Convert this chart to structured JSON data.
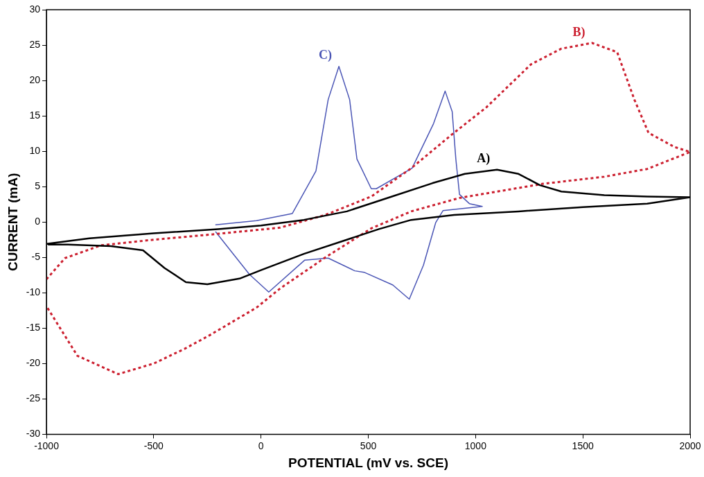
{
  "chart_data": {
    "type": "line",
    "xlabel": "POTENTIAL (mV vs. SCE)",
    "ylabel": "CURRENT (mA)",
    "xlim": [
      -1000,
      2000
    ],
    "xticks": [
      -1000,
      -500,
      0,
      500,
      1000,
      1500,
      2000
    ],
    "ylim": [
      -30,
      30
    ],
    "yticks": [
      -30,
      -25,
      -20,
      -15,
      -10,
      -5,
      0,
      5,
      10,
      15,
      20,
      25,
      30
    ],
    "grid": false,
    "legend": false,
    "marker": "none",
    "series": [
      {
        "name": "A)",
        "color": "#000000",
        "line_style": "solid",
        "x": [
          -1000,
          -800,
          -500,
          -200,
          0,
          200,
          400,
          600,
          800,
          950,
          1100,
          1200,
          1300,
          1400,
          1600,
          1800,
          2000,
          1800,
          1500,
          1200,
          900,
          700,
          550,
          400,
          200,
          0,
          -100,
          -250,
          -350,
          -450,
          -550,
          -700,
          -900,
          -990
        ],
        "values": [
          -3.1,
          -2.3,
          -1.6,
          -1.0,
          -0.5,
          0.3,
          1.5,
          3.5,
          5.5,
          6.8,
          7.4,
          6.8,
          5.2,
          4.3,
          3.8,
          3.6,
          3.5,
          2.6,
          2.1,
          1.5,
          1.0,
          0.3,
          -1.0,
          -2.5,
          -4.5,
          -6.8,
          -8.0,
          -8.8,
          -8.5,
          -6.5,
          -4.0,
          -3.4,
          -3.2,
          -3.2
        ]
      },
      {
        "name": "B)",
        "color": "#cc1f2f",
        "line_style": "dotted",
        "x": [
          -1000,
          -913,
          -746,
          -500,
          -245,
          89,
          300,
          514,
          700,
          891,
          1050,
          1259,
          1400,
          1543,
          1660,
          1740,
          1806,
          1927,
          2000,
          1800,
          1600,
          1315,
          1100,
          925,
          700,
          514,
          300,
          89,
          -21,
          -245,
          -355,
          -500,
          -666,
          -856,
          -1000
        ],
        "values": [
          -8.1,
          -5.1,
          -3.3,
          -2.5,
          -1.8,
          -0.8,
          1.0,
          3.6,
          7.6,
          12.4,
          16.2,
          22.3,
          24.5,
          25.3,
          24,
          17.3,
          12.6,
          10.6,
          9.9,
          7.5,
          6.4,
          5.4,
          4.3,
          3.4,
          1.5,
          -0.9,
          -5.0,
          -9.4,
          -12.1,
          -16.1,
          -17.9,
          -20.0,
          -21.5,
          -18.9,
          -11.9
        ]
      },
      {
        "name": "C)",
        "color": "#4a55b5",
        "line_style": "solid",
        "x": [
          -211,
          -21,
          146,
          256,
          313,
          363,
          413,
          447,
          514,
          537,
          704,
          804,
          858,
          891,
          908,
          925,
          971,
          1031,
          848,
          814,
          757,
          691,
          614,
          480,
          437,
          313,
          203,
          36,
          -54,
          -211
        ],
        "values": [
          -0.4,
          0.2,
          1.2,
          7.2,
          17.3,
          22,
          17.3,
          8.9,
          4.7,
          4.7,
          7.6,
          13.9,
          18.5,
          15.6,
          8.9,
          3.9,
          2.6,
          2.2,
          1.6,
          -0.1,
          -6.1,
          -10.9,
          -8.9,
          -7.1,
          -6.9,
          -5.1,
          -5.4,
          -9.9,
          -7.4,
          -1.4
        ]
      }
    ]
  }
}
